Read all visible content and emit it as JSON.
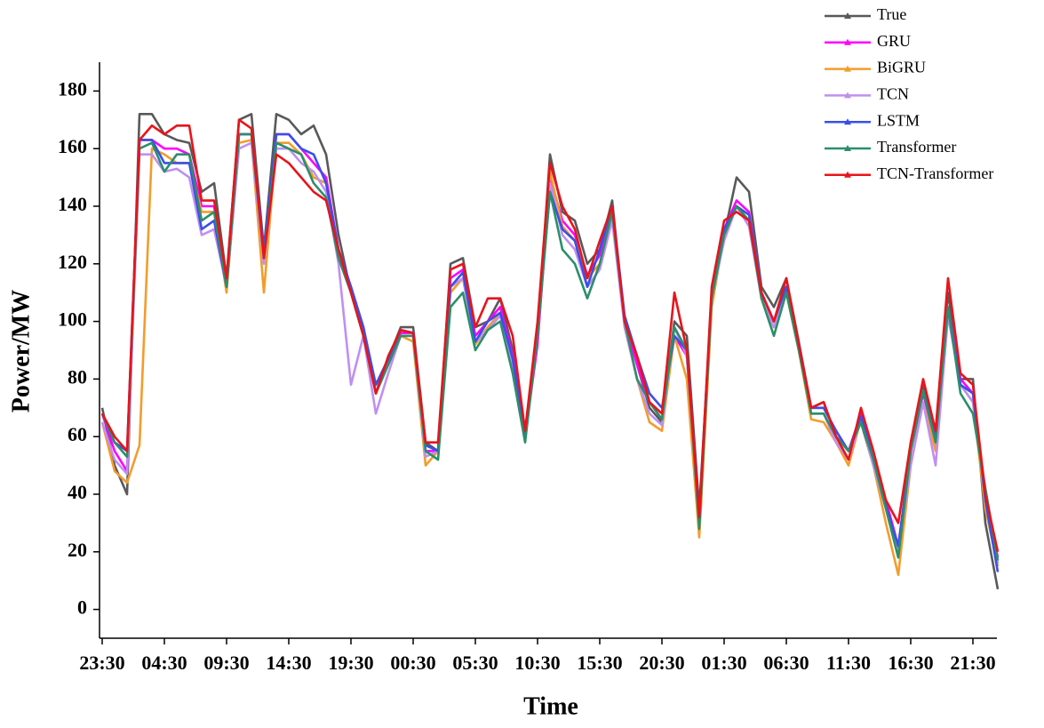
{
  "chart_data": {
    "type": "line",
    "x_label": "Time",
    "y_label": "Power/MW",
    "categories": [
      "23:30",
      null,
      null,
      null,
      null,
      "04:30",
      null,
      null,
      null,
      null,
      "09:30",
      null,
      null,
      null,
      null,
      "14:30",
      null,
      null,
      null,
      null,
      "19:30",
      null,
      null,
      null,
      null,
      "00:30",
      null,
      null,
      null,
      null,
      "05:30",
      null,
      null,
      null,
      null,
      "10:30",
      null,
      null,
      null,
      null,
      "15:30",
      null,
      null,
      null,
      null,
      "20:30",
      null,
      null,
      null,
      null,
      "01:30",
      null,
      null,
      null,
      null,
      "06:30",
      null,
      null,
      null,
      null,
      "11:30",
      null,
      null,
      null,
      null,
      "16:30",
      null,
      null,
      null,
      null,
      "21:30",
      null,
      null
    ],
    "ylim": [
      -10,
      190
    ],
    "yticks": [
      0,
      20,
      40,
      60,
      80,
      100,
      120,
      140,
      160,
      180
    ],
    "legend": "top-right",
    "series": [
      {
        "name": "True",
        "color": "#595959",
        "values": [
          70,
          50,
          40,
          172,
          172,
          165,
          163,
          162,
          145,
          148,
          115,
          170,
          172,
          125,
          172,
          170,
          165,
          168,
          158,
          130,
          110,
          95,
          78,
          87,
          98,
          98,
          58,
          55,
          120,
          122,
          98,
          100,
          108,
          90,
          60,
          95,
          158,
          138,
          135,
          120,
          125,
          142,
          100,
          85,
          70,
          65,
          100,
          95,
          35,
          108,
          130,
          150,
          145,
          112,
          105,
          115,
          93,
          70,
          72,
          60,
          55,
          65,
          50,
          36,
          20,
          58,
          78,
          62,
          110,
          80,
          80,
          30,
          7
        ]
      },
      {
        "name": "GRU",
        "color": "#ff00ff",
        "values": [
          68,
          55,
          48,
          163,
          163,
          160,
          160,
          158,
          140,
          140,
          112,
          165,
          165,
          122,
          165,
          165,
          160,
          155,
          150,
          125,
          112,
          98,
          75,
          86,
          96,
          96,
          55,
          55,
          115,
          118,
          95,
          100,
          105,
          88,
          60,
          92,
          150,
          135,
          130,
          116,
          123,
          138,
          100,
          85,
          72,
          66,
          95,
          88,
          32,
          108,
          132,
          142,
          138,
          110,
          100,
          112,
          92,
          70,
          70,
          62,
          55,
          68,
          52,
          38,
          22,
          55,
          75,
          58,
          105,
          80,
          75,
          40,
          18
        ]
      },
      {
        "name": "BiGRU",
        "color": "#f39c2b",
        "values": [
          65,
          48,
          44,
          57,
          160,
          158,
          155,
          155,
          138,
          138,
          110,
          162,
          163,
          110,
          162,
          162,
          158,
          150,
          148,
          122,
          110,
          95,
          75,
          85,
          95,
          93,
          50,
          55,
          110,
          115,
          92,
          98,
          103,
          85,
          60,
          95,
          152,
          133,
          128,
          115,
          120,
          136,
          98,
          80,
          65,
          62,
          95,
          80,
          25,
          105,
          130,
          140,
          135,
          108,
          98,
          110,
          90,
          66,
          65,
          58,
          50,
          66,
          50,
          30,
          12,
          50,
          72,
          55,
          105,
          78,
          72,
          35,
          15
        ]
      },
      {
        "name": "TCN",
        "color": "#c08ff0",
        "values": [
          65,
          52,
          47,
          158,
          158,
          152,
          153,
          150,
          130,
          132,
          112,
          160,
          162,
          120,
          160,
          160,
          155,
          152,
          145,
          120,
          78,
          95,
          68,
          82,
          95,
          95,
          53,
          55,
          112,
          115,
          93,
          97,
          102,
          85,
          62,
          95,
          148,
          130,
          125,
          112,
          118,
          135,
          98,
          80,
          68,
          64,
          98,
          88,
          30,
          108,
          128,
          140,
          133,
          108,
          98,
          110,
          92,
          68,
          68,
          58,
          52,
          66,
          50,
          35,
          20,
          50,
          72,
          50,
          102,
          78,
          72,
          42,
          16
        ]
      },
      {
        "name": "LSTM",
        "color": "#3a4fe8",
        "values": [
          68,
          58,
          55,
          163,
          163,
          155,
          155,
          155,
          132,
          135,
          112,
          165,
          165,
          125,
          165,
          165,
          160,
          158,
          148,
          125,
          112,
          98,
          78,
          87,
          97,
          96,
          57,
          55,
          112,
          117,
          93,
          100,
          103,
          87,
          60,
          97,
          145,
          132,
          128,
          112,
          125,
          140,
          102,
          88,
          75,
          70,
          95,
          90,
          32,
          110,
          132,
          140,
          137,
          110,
          100,
          112,
          92,
          70,
          70,
          62,
          55,
          67,
          52,
          36,
          22,
          55,
          76,
          60,
          105,
          78,
          75,
          38,
          13
        ]
      },
      {
        "name": "Transformer",
        "color": "#2a8f6a",
        "values": [
          68,
          58,
          53,
          160,
          162,
          152,
          158,
          158,
          135,
          138,
          112,
          165,
          165,
          122,
          162,
          160,
          158,
          148,
          143,
          122,
          110,
          95,
          75,
          85,
          95,
          95,
          55,
          52,
          105,
          110,
          90,
          97,
          100,
          82,
          58,
          95,
          145,
          125,
          120,
          108,
          120,
          138,
          100,
          80,
          72,
          66,
          98,
          90,
          28,
          108,
          130,
          140,
          135,
          108,
          95,
          110,
          90,
          68,
          68,
          60,
          55,
          65,
          52,
          35,
          18,
          55,
          76,
          58,
          105,
          75,
          68,
          42,
          17
        ]
      },
      {
        "name": "TCN-Transformer",
        "color": "#e8141b",
        "values": [
          68,
          60,
          55,
          163,
          168,
          165,
          168,
          168,
          142,
          142,
          115,
          170,
          167,
          122,
          158,
          155,
          150,
          145,
          142,
          125,
          110,
          95,
          75,
          88,
          97,
          96,
          58,
          58,
          118,
          120,
          98,
          108,
          108,
          95,
          62,
          100,
          155,
          140,
          132,
          115,
          128,
          140,
          100,
          88,
          72,
          68,
          110,
          90,
          32,
          112,
          135,
          138,
          135,
          110,
          100,
          115,
          92,
          70,
          72,
          60,
          52,
          70,
          55,
          38,
          30,
          58,
          80,
          62,
          115,
          82,
          78,
          40,
          20
        ]
      }
    ]
  }
}
